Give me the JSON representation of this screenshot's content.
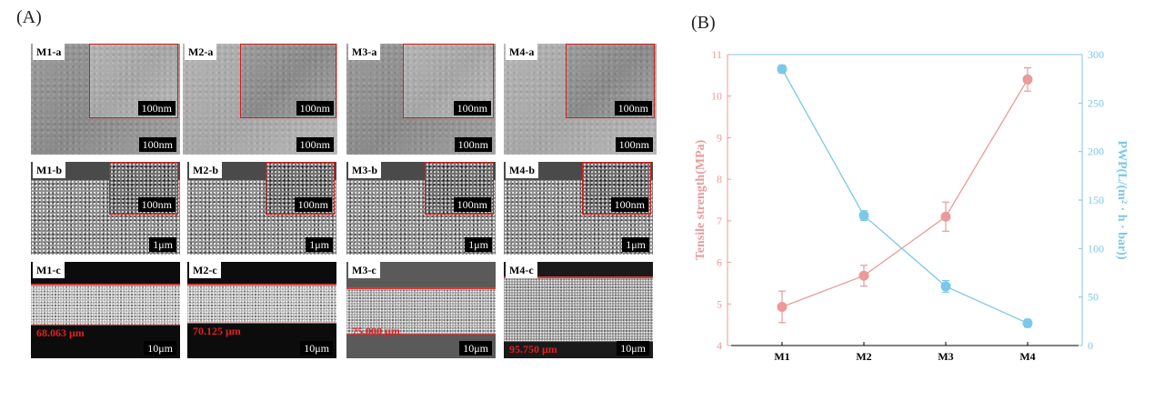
{
  "panel_a": {
    "label": "(A)",
    "tiles": [
      {
        "tag": "M1-a",
        "scale": "100nm",
        "inset_scale": "100nm"
      },
      {
        "tag": "M2-a",
        "scale": "100nm",
        "inset_scale": "100nm"
      },
      {
        "tag": "M3-a",
        "scale": "100nm",
        "inset_scale": "100nm"
      },
      {
        "tag": "M4-a",
        "scale": "100nm",
        "inset_scale": "100nm"
      },
      {
        "tag": "M1-b",
        "scale": "1μm",
        "inset_scale": "100nm"
      },
      {
        "tag": "M2-b",
        "scale": "1μm",
        "inset_scale": "100nm"
      },
      {
        "tag": "M3-b",
        "scale": "1μm",
        "inset_scale": "100nm"
      },
      {
        "tag": "M4-b",
        "scale": "1μm",
        "inset_scale": "100nm"
      },
      {
        "tag": "M1-c",
        "scale": "10μm",
        "thickness": "68.063 μm"
      },
      {
        "tag": "M2-c",
        "scale": "10μm",
        "thickness": "70.125 μm"
      },
      {
        "tag": "M3-c",
        "scale": "10μm",
        "thickness": "75.000 μm"
      },
      {
        "tag": "M4-c",
        "scale": "10μm",
        "thickness": "95.750 μm"
      }
    ]
  },
  "panel_b": {
    "label": "(B)"
  },
  "colors": {
    "tensile": "#ea9a9a",
    "pwp": "#7cc7ea",
    "scale_red": "#d0201f"
  },
  "chart_data": {
    "type": "line",
    "categories": [
      "M1",
      "M2",
      "M3",
      "M4"
    ],
    "y_left": {
      "label": "Tensile strength(MPa)",
      "lim": [
        4,
        11
      ],
      "ticks": [
        4,
        5,
        6,
        7,
        8,
        9,
        10,
        11
      ]
    },
    "y_right": {
      "label": "PWP(L/(m² · h · bar))",
      "lim": [
        0,
        300
      ],
      "ticks": [
        0,
        50,
        100,
        150,
        200,
        250,
        300
      ]
    },
    "series": [
      {
        "axis": "left",
        "values": [
          4.93,
          5.68,
          7.1,
          10.4
        ],
        "errors": [
          0.38,
          0.25,
          0.35,
          0.28
        ]
      },
      {
        "axis": "right",
        "values": [
          285,
          134,
          61,
          23
        ],
        "errors": [
          4,
          5,
          6,
          4
        ]
      }
    ],
    "grid": false
  }
}
